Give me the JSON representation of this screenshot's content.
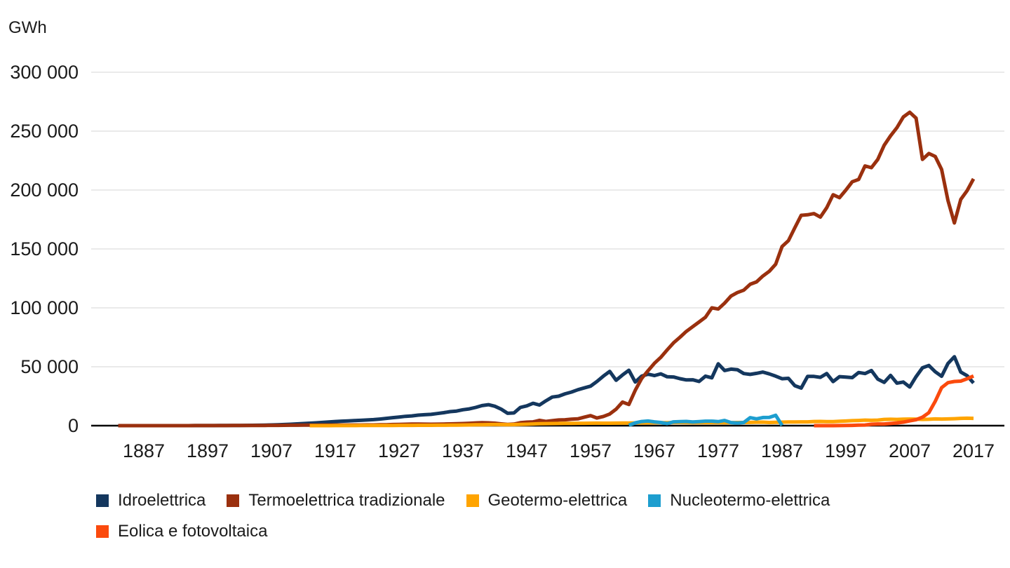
{
  "chart_data": {
    "type": "line",
    "unit_label": "GWh",
    "grid": "horizontal",
    "legend_position": "bottom",
    "x_range": [
      1883,
      2017
    ],
    "y_range": [
      0,
      300000
    ],
    "x_ticks": [
      "1887",
      "1897",
      "1907",
      "1917",
      "1927",
      "1937",
      "1947",
      "1957",
      "1967",
      "1977",
      "1987",
      "1997",
      "2007",
      "2017"
    ],
    "y_ticks": [
      {
        "value": 0,
        "label": "0"
      },
      {
        "value": 50000,
        "label": "50 000"
      },
      {
        "value": 100000,
        "label": "100 000"
      },
      {
        "value": 150000,
        "label": "150 000"
      },
      {
        "value": 200000,
        "label": "200 000"
      },
      {
        "value": 250000,
        "label": "250 000"
      },
      {
        "value": 300000,
        "label": "300 000"
      }
    ],
    "series": [
      {
        "name": "Idroelettrica",
        "color": "#14375e",
        "start_year": 1883,
        "values": [
          0,
          1,
          1,
          2,
          3,
          4,
          6,
          8,
          10,
          15,
          20,
          28,
          38,
          50,
          65,
          80,
          95,
          115,
          145,
          185,
          235,
          295,
          375,
          475,
          600,
          760,
          950,
          1200,
          1500,
          1800,
          2100,
          2400,
          2750,
          3150,
          3500,
          3800,
          4050,
          4300,
          4550,
          4800,
          5100,
          5600,
          6200,
          6800,
          7300,
          7900,
          8300,
          8900,
          9300,
          9600,
          10300,
          11000,
          11900,
          12400,
          13500,
          14200,
          15500,
          17000,
          17800,
          16500,
          14000,
          10500,
          10800,
          15500,
          16800,
          19000,
          17500,
          21100,
          24300,
          25000,
          27000,
          28500,
          30500,
          32000,
          33500,
          37500,
          42000,
          46100,
          38500,
          43000,
          47000,
          37000,
          42000,
          43700,
          42500,
          44000,
          41500,
          41300,
          39900,
          38800,
          38900,
          37500,
          42000,
          40600,
          52500,
          46800,
          48000,
          47500,
          44200,
          43500,
          44400,
          45500,
          43900,
          42000,
          39800,
          40200,
          33900,
          31900,
          41800,
          41800,
          41000,
          44200,
          37400,
          41600,
          41200,
          40800,
          45100,
          44200,
          46800,
          39500,
          36700,
          42700,
          36100,
          37000,
          32800,
          41600,
          49100,
          51100,
          45800,
          41900,
          52800,
          58500,
          45500,
          42400,
          36200
        ]
      },
      {
        "name": "Termoelettrica tradizionale",
        "color": "#9a300e",
        "start_year": 1883,
        "values": [
          0,
          1,
          2,
          3,
          5,
          7,
          9,
          11,
          14,
          17,
          21,
          26,
          31,
          38,
          46,
          55,
          65,
          80,
          95,
          110,
          130,
          150,
          170,
          195,
          225,
          260,
          300,
          340,
          380,
          420,
          460,
          500,
          520,
          540,
          560,
          550,
          530,
          520,
          540,
          570,
          620,
          700,
          800,
          950,
          1050,
          1200,
          1300,
          1300,
          1250,
          1200,
          1250,
          1350,
          1500,
          1600,
          1800,
          2000,
          2300,
          2500,
          2400,
          2100,
          1500,
          1000,
          1300,
          2500,
          3000,
          3200,
          4500,
          3600,
          4200,
          4800,
          5000,
          5500,
          5800,
          7200,
          8500,
          6500,
          7800,
          9900,
          14000,
          20000,
          18000,
          30000,
          40000,
          46600,
          52900,
          58000,
          64300,
          70300,
          75000,
          80000,
          84000,
          88000,
          92000,
          100000,
          99000,
          104000,
          110000,
          113000,
          115000,
          120000,
          122000,
          127000,
          131000,
          137000,
          152000,
          157000,
          168000,
          178600,
          179000,
          180000,
          177000,
          185000,
          196000,
          193500,
          200000,
          207000,
          209000,
          220500,
          219000,
          226000,
          238000,
          246000,
          253000,
          262000,
          266000,
          261000,
          226000,
          231000,
          228500,
          217500,
          191000,
          172000,
          192000,
          199500,
          209500
        ]
      },
      {
        "name": "Geotermo-elettrica",
        "color": "#ffa400",
        "start_year": 1913,
        "values": [
          3,
          8,
          15,
          25,
          40,
          55,
          70,
          85,
          100,
          115,
          130,
          150,
          170,
          190,
          210,
          230,
          250,
          270,
          290,
          310,
          340,
          380,
          420,
          470,
          530,
          600,
          700,
          800,
          900,
          950,
          900,
          850,
          900,
          1050,
          1200,
          1400,
          1600,
          1700,
          1800,
          1850,
          1900,
          1950,
          2000,
          2050,
          2100,
          2150,
          2100,
          2100,
          2150,
          2200,
          2250,
          2300,
          2350,
          2400,
          2450,
          2500,
          2550,
          2700,
          2650,
          2600,
          2500,
          2550,
          2500,
          2550,
          2500,
          2450,
          2500,
          2700,
          2700,
          2750,
          2900,
          2950,
          2700,
          2800,
          3000,
          3100,
          3150,
          3200,
          3200,
          3500,
          3600,
          3400,
          3400,
          3700,
          3900,
          4200,
          4400,
          4700,
          4500,
          4700,
          5300,
          5400,
          5300,
          5500,
          5600,
          5500,
          5300,
          5400,
          5700,
          5600,
          5700,
          5900,
          6200,
          6300,
          6200
        ]
      },
      {
        "name": "Nucleotermo-elettrica",
        "color": "#1d9ecf",
        "start_year": 1963,
        "values": [
          300,
          2400,
          3500,
          3900,
          3200,
          2700,
          1800,
          3200,
          3400,
          3600,
          3100,
          3400,
          3800,
          3800,
          3400,
          4400,
          2600,
          2200,
          2700,
          6800,
          5800,
          6900,
          7000,
          8800,
          200
        ]
      },
      {
        "name": "Eolica e fotovoltaica",
        "color": "#fb4a0d",
        "start_year": 1992,
        "values": [
          2,
          4,
          6,
          10,
          33,
          118,
          232,
          403,
          563,
          1179,
          1404,
          1458,
          1847,
          2344,
          2971,
          4034,
          5054,
          7220,
          11032,
          20652,
          32269,
          36486,
          37484,
          37786,
          39793,
          42120
        ]
      }
    ]
  }
}
